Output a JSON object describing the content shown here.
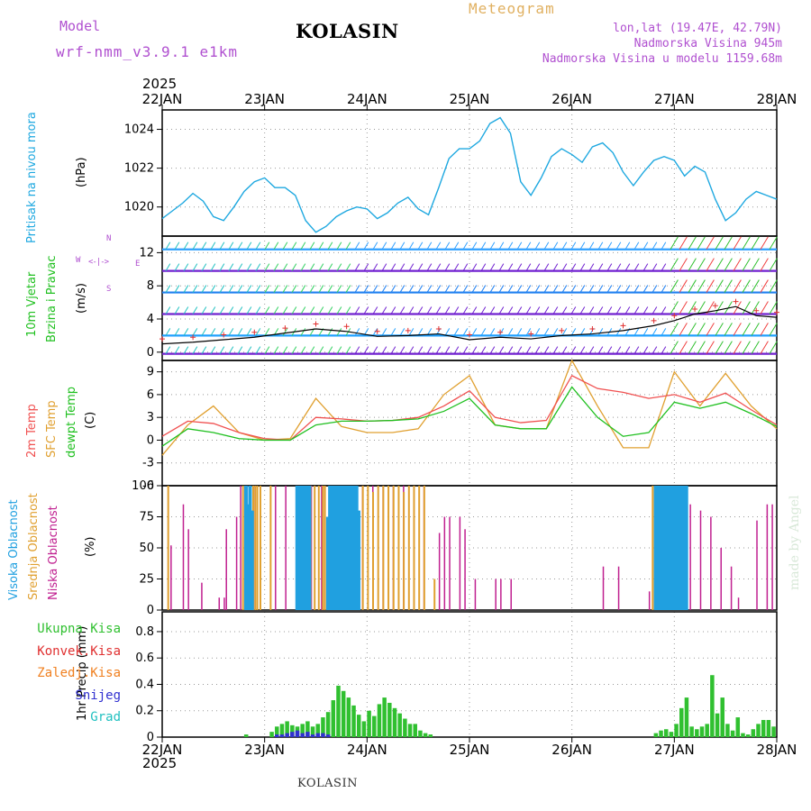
{
  "header": {
    "model_label": "Model",
    "model_name": "wrf-nmm_v3.9.1  e1km",
    "title": "KOLASIN",
    "meteogram": "Meteogram",
    "lonlat": "lon,lat (19.47E, 42.79N)",
    "elevation": "Nadmorska Visina 945m",
    "model_elevation": "Nadmorska Visina u modelu 1159.68m",
    "year_top": "2025",
    "year_bottom": "2025",
    "footer_station": "KOLASIN",
    "watermark": "made by Angel"
  },
  "colors": {
    "pressure": "#1ea8e0",
    "t2m": "#f05050",
    "sfc": "#e0a030",
    "dewpt": "#20c020",
    "high_cloud": "#20a0e0",
    "mid_cloud": "#e0a030",
    "low_cloud": "#c02090",
    "precip_total": "#30c030",
    "precip_conv": "#e03030",
    "precip_frz": "#f08020",
    "snow": "#3030d0",
    "hail": "#20c0c0",
    "title": "#000000",
    "model": "#b050d0",
    "meteogram": "#e0b060"
  },
  "panels": {
    "pressure": {
      "label": "Pritisak na nivou mora",
      "unit": "(hPa)"
    },
    "wind": {
      "label1": "10m Vjetar",
      "label2": "Brzina i Pravac",
      "unit": "(m/s)",
      "compass_n": "N",
      "compass_s": "S",
      "compass_w": "W",
      "compass_e": "E"
    },
    "temp": {
      "label_t2m": "2m Temp",
      "label_sfc": "SFC Temp",
      "label_dew": "dewpt Temp",
      "unit": "(C)"
    },
    "cloud": {
      "label_high": "Visoka Oblacnost",
      "label_mid": "Srednja Oblacnost",
      "label_low": "Niska Oblacnost",
      "unit": "(%)"
    },
    "precip": {
      "unit_label": "1hr Precip (mm)",
      "legend": [
        "Ukupna Kisa",
        "Konvek.Kisa",
        "Zaledj.Kisa",
        "Snijeg",
        "Grad"
      ]
    }
  },
  "chart_data": {
    "type": "line",
    "days": [
      "22JAN",
      "23JAN",
      "24JAN",
      "25JAN",
      "26JAN",
      "27JAN",
      "28JAN"
    ],
    "pressure": {
      "ylim": [
        1018.5,
        1025
      ],
      "ticks": [
        1020,
        1022,
        1024
      ],
      "x": [
        0,
        0.1,
        0.2,
        0.3,
        0.4,
        0.5,
        0.6,
        0.7,
        0.8,
        0.9,
        1.0,
        1.1,
        1.2,
        1.3,
        1.4,
        1.5,
        1.6,
        1.7,
        1.8,
        1.9,
        2.0,
        2.1,
        2.2,
        2.3,
        2.4,
        2.5,
        2.6,
        2.7,
        2.8,
        2.9,
        3.0,
        3.1,
        3.2,
        3.3,
        3.4,
        3.5,
        3.6,
        3.7,
        3.8,
        3.9,
        4.0,
        4.1,
        4.2,
        4.3,
        4.4,
        4.5,
        4.6,
        4.7,
        4.8,
        4.9,
        5.0,
        5.1,
        5.2,
        5.3,
        5.4,
        5.5,
        5.6,
        5.7,
        5.8,
        5.9,
        6.0
      ],
      "y": [
        1019.4,
        1019.8,
        1020.2,
        1020.7,
        1020.3,
        1019.5,
        1019.3,
        1020.0,
        1020.8,
        1021.3,
        1021.5,
        1021.0,
        1021.0,
        1020.6,
        1019.3,
        1018.7,
        1019.0,
        1019.5,
        1019.8,
        1020.0,
        1019.9,
        1019.4,
        1019.7,
        1020.2,
        1020.5,
        1019.9,
        1019.6,
        1021.0,
        1022.5,
        1023.0,
        1023.0,
        1023.4,
        1024.3,
        1024.6,
        1023.8,
        1021.3,
        1020.6,
        1021.5,
        1022.6,
        1023.0,
        1022.7,
        1022.3,
        1023.1,
        1023.3,
        1022.8,
        1021.8,
        1021.1,
        1021.8,
        1022.4,
        1022.6,
        1022.4,
        1021.6,
        1022.1,
        1021.8,
        1020.4,
        1019.3,
        1019.7,
        1020.4,
        1020.8,
        1020.6,
        1020.4
      ]
    },
    "wind": {
      "ylim": [
        -1,
        14
      ],
      "ticks": [
        0,
        4,
        8,
        12
      ],
      "speed_x": [
        0,
        0.3,
        0.6,
        0.9,
        1.2,
        1.5,
        1.8,
        2.1,
        2.4,
        2.7,
        3.0,
        3.3,
        3.6,
        3.9,
        4.2,
        4.5,
        4.8,
        5.0,
        5.2,
        5.4,
        5.6,
        5.8,
        6.0
      ],
      "speed_y": [
        1.0,
        1.2,
        1.5,
        1.8,
        2.3,
        2.8,
        2.5,
        1.9,
        2.0,
        2.2,
        1.5,
        1.8,
        1.6,
        2.0,
        2.2,
        2.6,
        3.2,
        3.8,
        4.6,
        5.0,
        5.5,
        4.4,
        4.2
      ]
    },
    "temp": {
      "ylim": [
        -6,
        10.5
      ],
      "ticks": [
        -6,
        -3,
        0,
        3,
        6,
        9
      ],
      "x": [
        0,
        0.25,
        0.5,
        0.75,
        1.0,
        1.25,
        1.5,
        1.75,
        2.0,
        2.25,
        2.5,
        2.75,
        3.0,
        3.25,
        3.5,
        3.75,
        4.0,
        4.25,
        4.5,
        4.75,
        5.0,
        5.25,
        5.5,
        5.75,
        6.0
      ],
      "t2m": [
        0.5,
        2.5,
        2.2,
        1.0,
        0.2,
        0.0,
        3.0,
        2.8,
        2.5,
        2.6,
        3.0,
        4.5,
        6.5,
        3.0,
        2.3,
        2.6,
        8.5,
        6.8,
        6.3,
        5.5,
        6.0,
        5.0,
        6.2,
        4.0,
        2.0
      ],
      "sfc": [
        -2.0,
        2.0,
        4.5,
        1.0,
        0.0,
        0.2,
        5.5,
        1.8,
        1.0,
        1.0,
        1.5,
        6.0,
        8.5,
        2.0,
        1.5,
        1.5,
        10.5,
        4.5,
        -1.0,
        -1.0,
        9.0,
        4.5,
        8.8,
        4.5,
        1.5
      ],
      "dewpt": [
        -0.8,
        1.5,
        1.0,
        0.2,
        0.0,
        0.0,
        2.0,
        2.5,
        2.5,
        2.6,
        2.8,
        3.8,
        5.5,
        2.0,
        1.5,
        1.5,
        7.0,
        3.0,
        0.5,
        1.0,
        5.0,
        4.2,
        5.0,
        3.5,
        1.8
      ]
    },
    "cloud": {
      "ylim": [
        0,
        100
      ],
      "ticks": [
        0,
        25,
        50,
        75,
        100
      ],
      "high": {
        "x": [
          0.8,
          0.82,
          0.84,
          0.86,
          1.3,
          1.32,
          1.34,
          1.36,
          1.38,
          1.4,
          1.42,
          1.6,
          1.62,
          1.64,
          1.66,
          1.68,
          1.7,
          1.72,
          1.74,
          1.76,
          1.78,
          1.8,
          1.82,
          1.84,
          1.86,
          1.88,
          1.9,
          4.8,
          4.82,
          4.84,
          4.86,
          4.88,
          4.9,
          4.92,
          4.94,
          4.96,
          4.98,
          5.0,
          5.02,
          5.04,
          5.06,
          5.08,
          5.1
        ],
        "y": [
          100,
          85,
          100,
          80,
          100,
          100,
          100,
          100,
          100,
          100,
          100,
          75,
          100,
          100,
          100,
          100,
          100,
          100,
          100,
          100,
          100,
          100,
          100,
          100,
          100,
          100,
          80,
          100,
          100,
          100,
          100,
          100,
          100,
          100,
          100,
          100,
          100,
          100,
          100,
          100,
          100,
          100,
          100
        ]
      },
      "mid": {
        "x": [
          0.05,
          0.78,
          0.8,
          0.88,
          0.9,
          0.92,
          0.95,
          1.05,
          1.44,
          1.48,
          1.52,
          1.56,
          1.58,
          1.95,
          2.0,
          2.05,
          2.1,
          2.15,
          2.2,
          2.25,
          2.3,
          2.35,
          2.4,
          2.45,
          2.5,
          2.55,
          2.65,
          4.78,
          4.8,
          5.0,
          5.05
        ],
        "y": [
          100,
          100,
          100,
          100,
          100,
          100,
          100,
          100,
          100,
          100,
          100,
          100,
          100,
          100,
          100,
          95,
          100,
          100,
          100,
          100,
          100,
          95,
          100,
          100,
          100,
          100,
          25,
          100,
          100,
          100,
          100
        ]
      },
      "low": {
        "x": [
          0.08,
          0.2,
          0.25,
          0.38,
          0.55,
          0.6,
          0.62,
          0.72,
          0.76,
          0.82,
          0.9,
          1.1,
          1.2,
          1.35,
          1.45,
          1.55,
          1.65,
          1.75,
          1.85,
          1.95,
          2.05,
          2.15,
          2.25,
          2.35,
          2.45,
          2.55,
          2.7,
          2.75,
          2.8,
          2.9,
          2.95,
          3.05,
          3.25,
          3.3,
          3.4,
          4.3,
          4.45,
          4.75,
          5.15,
          5.25,
          5.35,
          5.45,
          5.55,
          5.62,
          5.8,
          5.9,
          5.95
        ],
        "y": [
          52,
          85,
          65,
          22,
          10,
          10,
          65,
          75,
          100,
          100,
          100,
          100,
          100,
          100,
          100,
          100,
          100,
          100,
          100,
          100,
          100,
          100,
          100,
          100,
          100,
          100,
          62,
          75,
          75,
          75,
          65,
          25,
          25,
          25,
          25,
          35,
          35,
          15,
          85,
          80,
          75,
          50,
          35,
          10,
          72,
          85,
          85
        ]
      }
    },
    "precip": {
      "ylim": [
        0,
        0.95
      ],
      "ticks": [
        0,
        0.2,
        0.4,
        0.6,
        0.8
      ],
      "x": [
        0.8,
        1.05,
        1.1,
        1.15,
        1.2,
        1.25,
        1.3,
        1.35,
        1.4,
        1.45,
        1.5,
        1.55,
        1.6,
        1.65,
        1.7,
        1.75,
        1.8,
        1.85,
        1.9,
        1.95,
        2.0,
        2.05,
        2.1,
        2.15,
        2.2,
        2.25,
        2.3,
        2.35,
        2.4,
        2.45,
        2.5,
        2.55,
        2.6,
        4.8,
        4.85,
        4.9,
        4.95,
        5.0,
        5.05,
        5.1,
        5.15,
        5.2,
        5.25,
        5.3,
        5.35,
        5.4,
        5.45,
        5.5,
        5.55,
        5.6,
        5.65,
        5.7,
        5.75,
        5.8,
        5.85,
        5.9,
        5.95
      ],
      "total": [
        0.02,
        0.04,
        0.08,
        0.1,
        0.12,
        0.09,
        0.08,
        0.1,
        0.12,
        0.08,
        0.1,
        0.15,
        0.19,
        0.28,
        0.39,
        0.35,
        0.3,
        0.24,
        0.17,
        0.12,
        0.2,
        0.16,
        0.25,
        0.3,
        0.26,
        0.22,
        0.18,
        0.14,
        0.1,
        0.1,
        0.05,
        0.03,
        0.02,
        0.03,
        0.05,
        0.06,
        0.04,
        0.1,
        0.22,
        0.3,
        0.08,
        0.06,
        0.08,
        0.1,
        0.47,
        0.18,
        0.3,
        0.1,
        0.05,
        0.15,
        0.03,
        0.02,
        0.06,
        0.1,
        0.13,
        0.13,
        0.08
      ],
      "snow": [
        0,
        0,
        0.02,
        0.02,
        0.03,
        0.04,
        0.05,
        0.03,
        0.04,
        0.02,
        0.03,
        0.03,
        0.02,
        0,
        0,
        0,
        0,
        0,
        0,
        0,
        0,
        0,
        0,
        0,
        0,
        0,
        0,
        0,
        0,
        0,
        0,
        0,
        0,
        0,
        0,
        0,
        0,
        0,
        0,
        0,
        0,
        0,
        0,
        0,
        0,
        0,
        0,
        0,
        0,
        0,
        0,
        0,
        0,
        0,
        0,
        0,
        0
      ]
    }
  }
}
